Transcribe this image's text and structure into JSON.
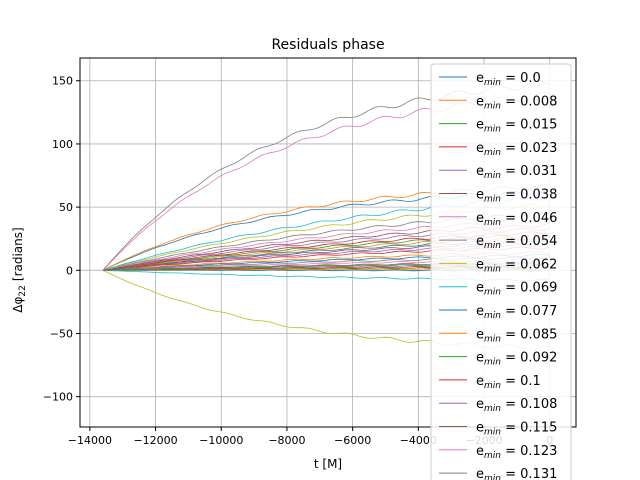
{
  "chart_data": {
    "type": "line",
    "title": "Residuals phase",
    "xlabel": "t [M]",
    "ylabel_main": "Δφ",
    "ylabel_sub": "22",
    "ylabel_unit": "[radians]",
    "xlim": [
      -14300,
      800
    ],
    "ylim": [
      -124,
      168
    ],
    "xticks": [
      -14000,
      -12000,
      -10000,
      -8000,
      -6000,
      -4000,
      -2000,
      0
    ],
    "xtick_labels": [
      "−14000",
      "−12000",
      "−10000",
      "−8000",
      "−6000",
      "−4000",
      "−2000",
      "0"
    ],
    "yticks": [
      -100,
      -50,
      0,
      50,
      100,
      150
    ],
    "ytick_labels": [
      "−100",
      "−50",
      "0",
      "50",
      "100",
      "150"
    ],
    "grid": true,
    "legend_position": "upper-right",
    "legend_prefix": "e",
    "legend_sub": "min",
    "x_start": -13600,
    "x_end": 0,
    "series": [
      {
        "name": "0.0",
        "final": 0,
        "color": "#1f77b4"
      },
      {
        "name": "0.008",
        "final": 1,
        "color": "#ff7f0e"
      },
      {
        "name": "0.015",
        "final": 2,
        "color": "#2ca02c"
      },
      {
        "name": "0.023",
        "final": 3,
        "color": "#d62728"
      },
      {
        "name": "0.031",
        "final": 4,
        "color": "#9467bd"
      },
      {
        "name": "0.038",
        "final": 6,
        "color": "#8c564b"
      },
      {
        "name": "0.046",
        "final": 8,
        "color": "#e377c2"
      },
      {
        "name": "0.054",
        "final": 10,
        "color": "#7f7f7f"
      },
      {
        "name": "0.062",
        "final": -62,
        "color": "#bcbd22"
      },
      {
        "name": "0.069",
        "final": -8,
        "color": "#17becf"
      },
      {
        "name": "0.077",
        "final": 12,
        "color": "#1f77b4"
      },
      {
        "name": "0.085",
        "final": 14,
        "color": "#ff7f0e"
      },
      {
        "name": "0.092",
        "final": 5,
        "color": "#2ca02c"
      },
      {
        "name": "0.1",
        "final": 18,
        "color": "#d62728"
      },
      {
        "name": "0.108",
        "final": 20,
        "color": "#9467bd"
      },
      {
        "name": "0.115",
        "final": 22,
        "color": "#8c564b"
      },
      {
        "name": "0.123",
        "final": 138,
        "color": "#e377c2"
      },
      {
        "name": "0.131",
        "final": 148,
        "color": "#7f7f7f"
      }
    ],
    "extra_series_finals": [
      24,
      26,
      28,
      30,
      33,
      36,
      40,
      45,
      52,
      58,
      62,
      66
    ]
  }
}
